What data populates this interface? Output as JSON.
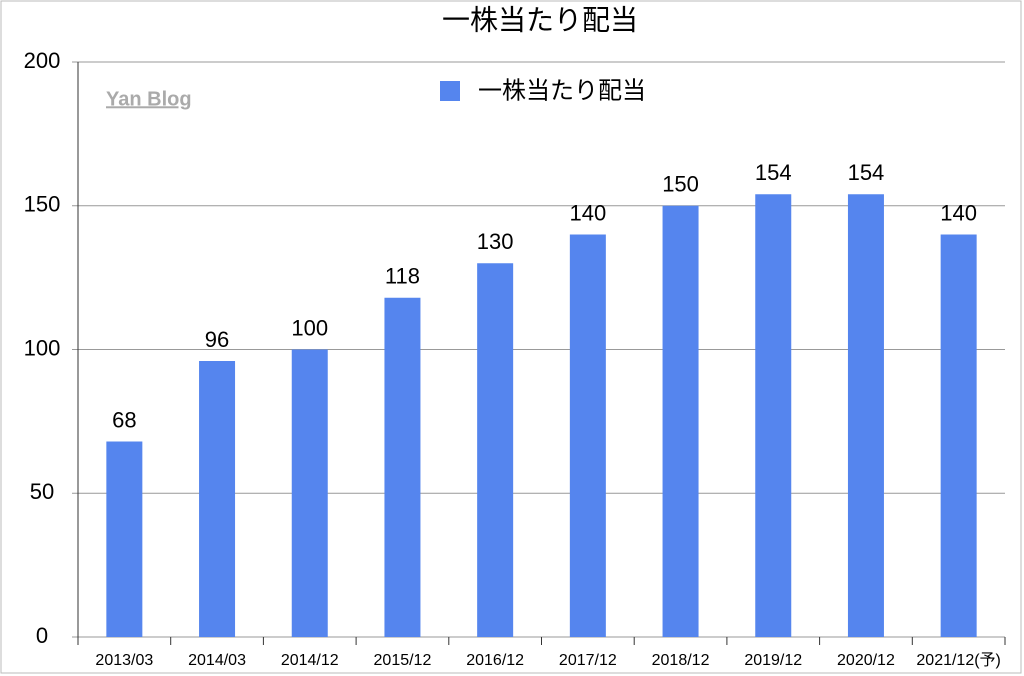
{
  "chart_data": {
    "type": "bar",
    "title": "一株当たり配当",
    "watermark": "Yan Blog",
    "categories": [
      "2013/03",
      "2014/03",
      "2014/12",
      "2015/12",
      "2016/12",
      "2017/12",
      "2018/12",
      "2019/12",
      "2020/12",
      "2021/12(予)"
    ],
    "series": [
      {
        "name": "一株当たり配当",
        "color": "#5585ee",
        "values": [
          68,
          96,
          100,
          118,
          130,
          140,
          150,
          154,
          154,
          140
        ]
      }
    ],
    "ylim": [
      0,
      200
    ],
    "yticks": [
      0,
      50,
      100,
      150,
      200
    ],
    "grid": true,
    "legend": "top"
  }
}
